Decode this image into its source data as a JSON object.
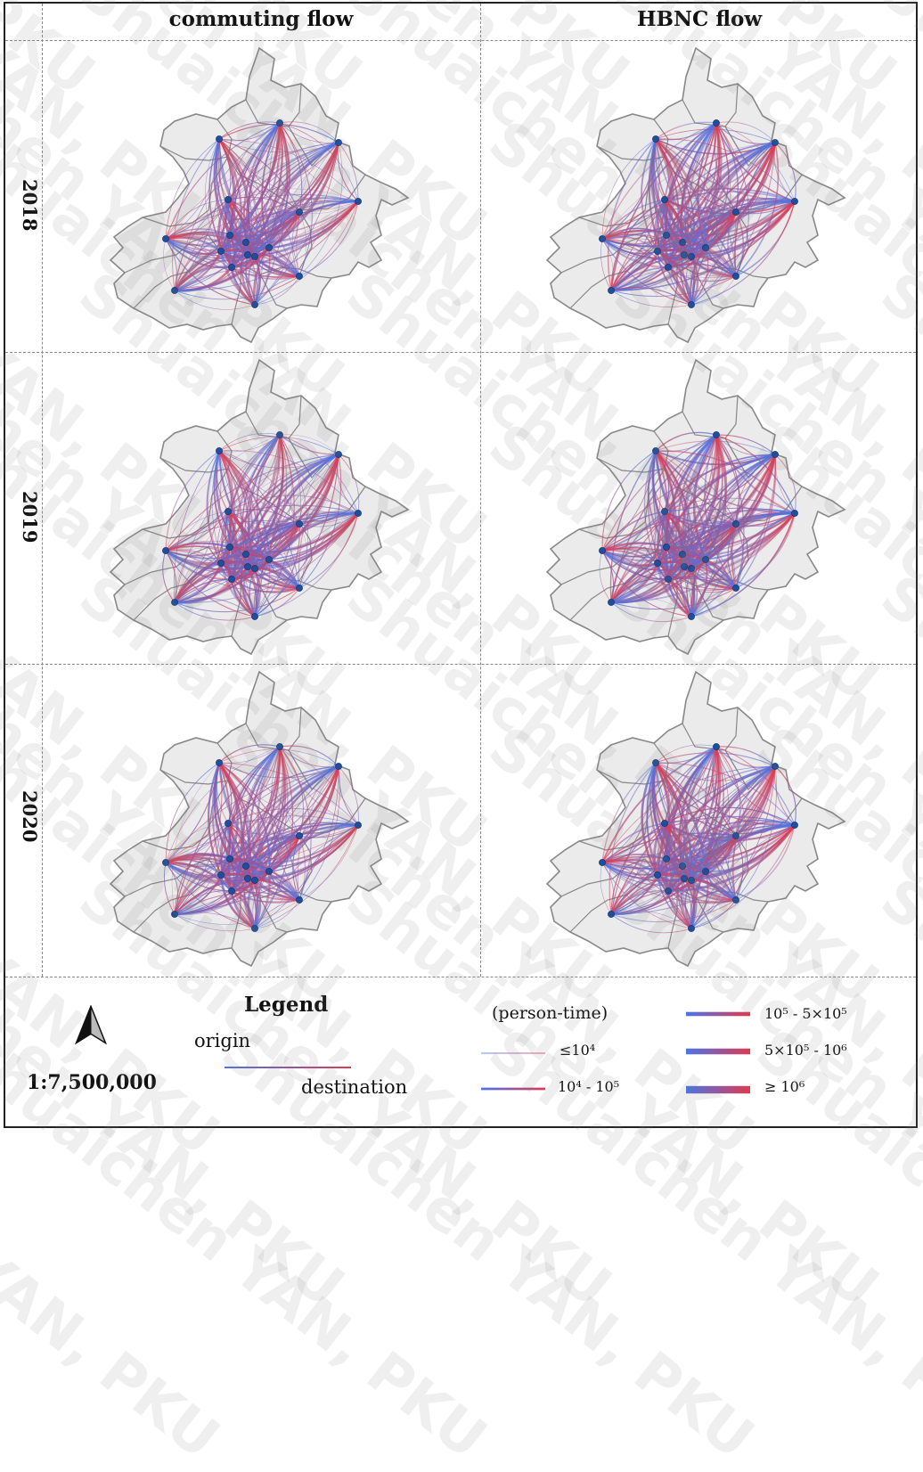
{
  "columns": [
    "commuting flow",
    "HBNC flow"
  ],
  "rows": [
    "2018",
    "2019",
    "2020"
  ],
  "colors": {
    "origin": "#4a74e8",
    "destination": "#e03a4e",
    "map_fill": "#ebebeb",
    "map_stroke": "#888888",
    "node": "#1f4e9a"
  },
  "legend": {
    "title": "Legend",
    "origin_label": "origin",
    "destination_label": "destination",
    "unit_label": "(person-time)",
    "classes": [
      {
        "label": "≤10⁴",
        "level": 1
      },
      {
        "label": "10⁴ - 10⁵",
        "level": 2
      },
      {
        "label": "10⁵ - 5×10⁵",
        "level": 3
      },
      {
        "label": "5×10⁵ - 10⁶",
        "level": 4
      },
      {
        "label": "≥ 10⁶",
        "level": 5
      }
    ]
  },
  "scale_text": "1:7,500,000",
  "north_arrow": "north-arrow-icon",
  "watermark_text": "Shuaichen YAN, PKU"
}
